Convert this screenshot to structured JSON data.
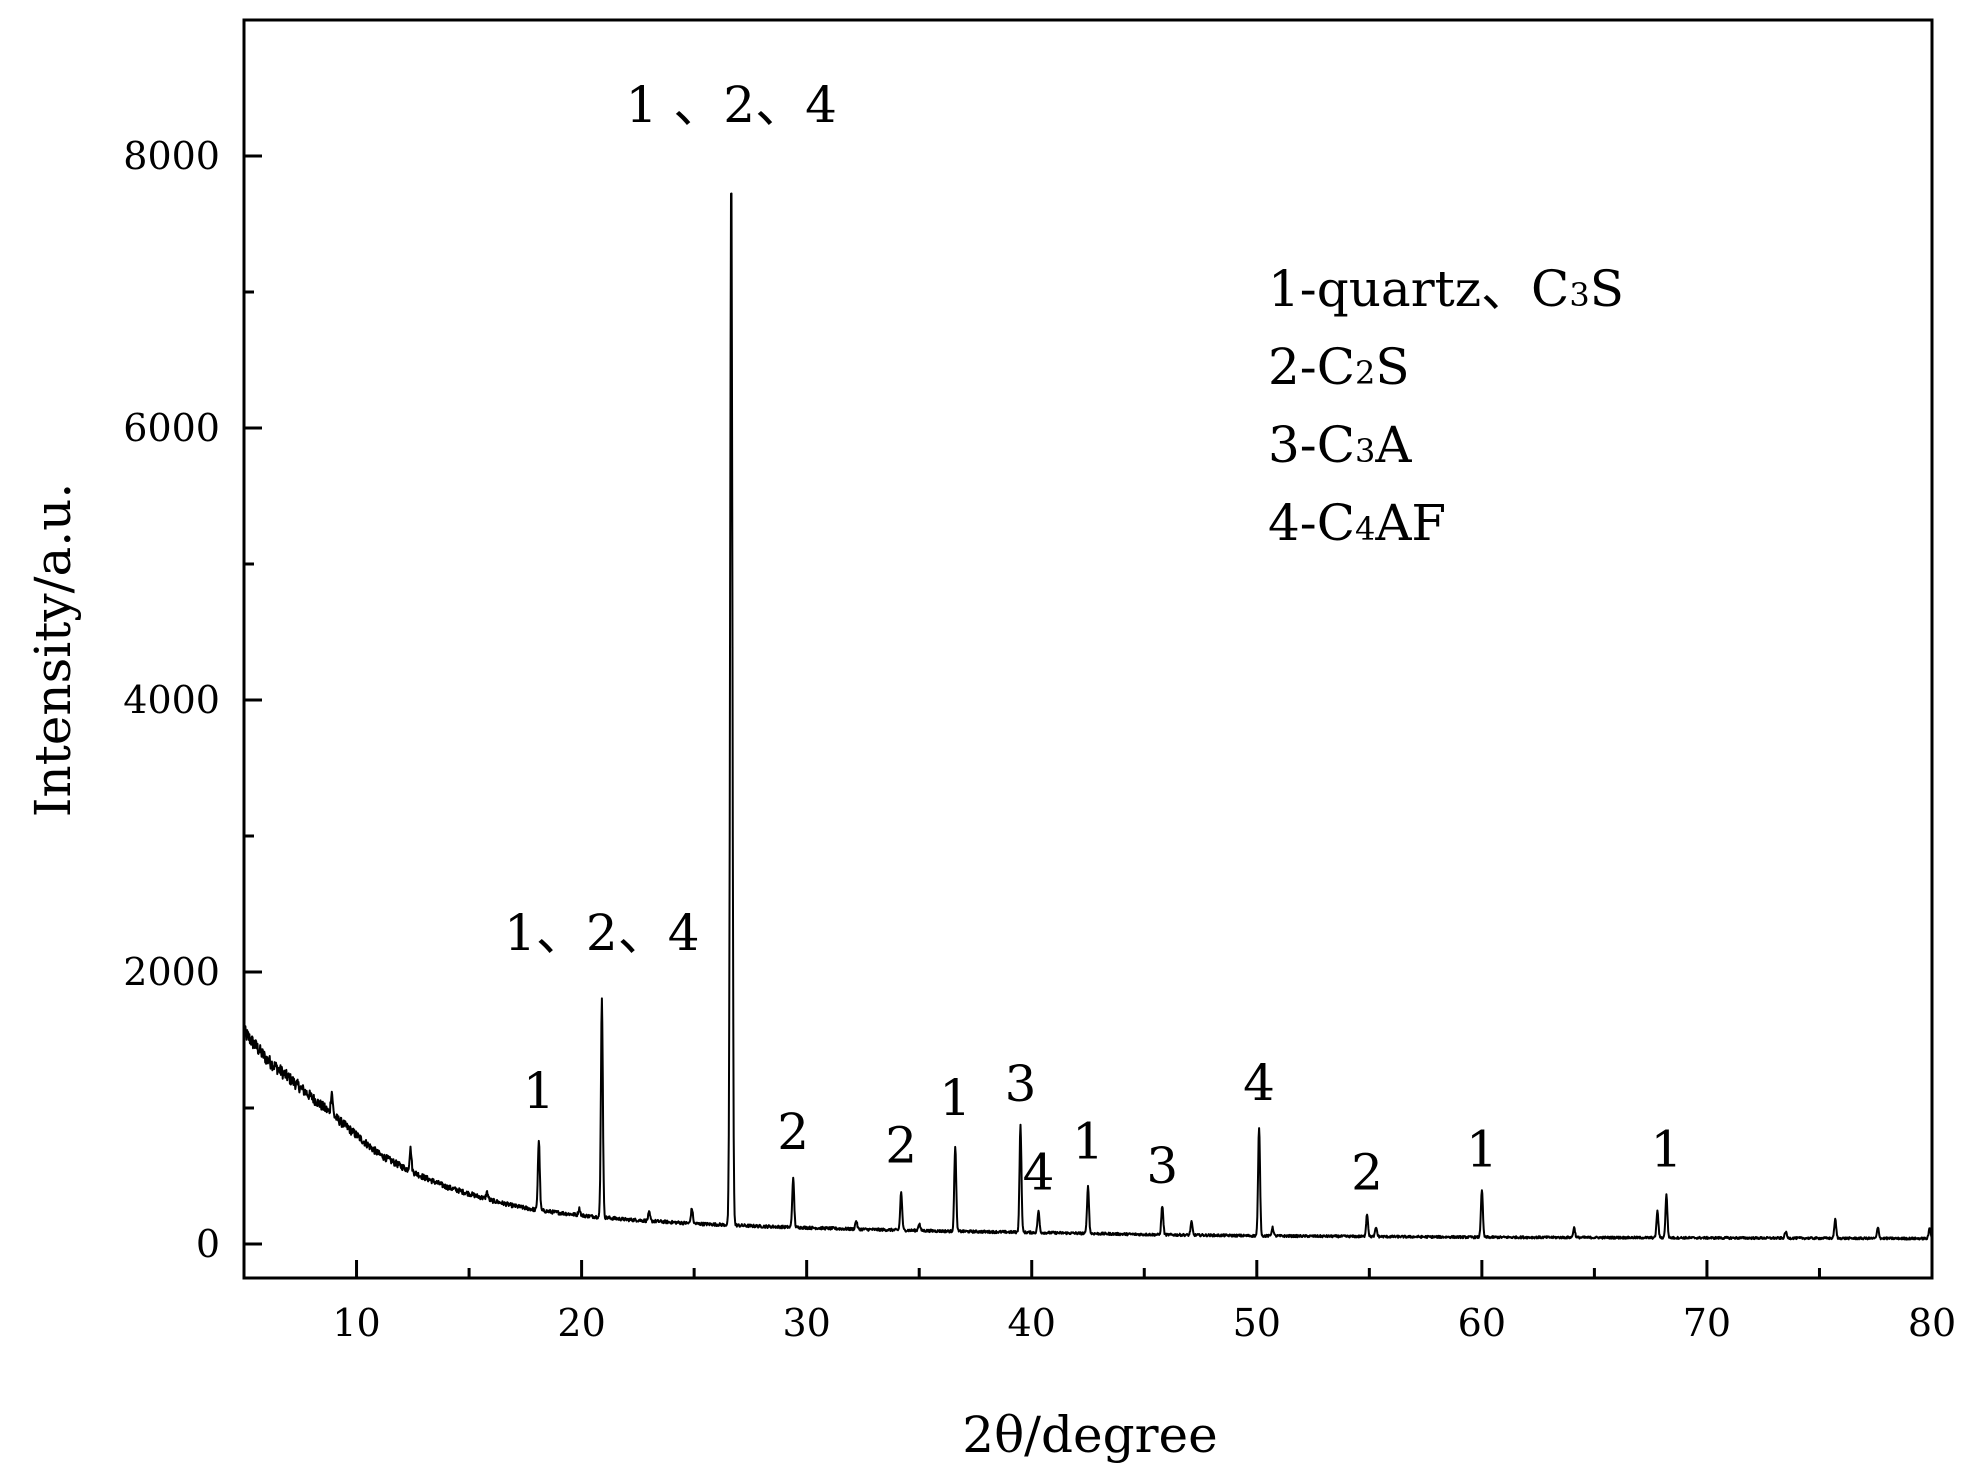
{
  "chart_data": {
    "type": "line",
    "title": "",
    "xlabel": "2θ/degree",
    "ylabel": "Intensity/a.u.",
    "xlim": [
      5,
      80
    ],
    "ylim": [
      -250,
      9000
    ],
    "xticks": [
      10,
      20,
      30,
      40,
      50,
      60,
      70,
      80
    ],
    "yticks": [
      0,
      2000,
      4000,
      6000,
      8000
    ],
    "grid": false,
    "legend": {
      "placement": "top-right",
      "entries": [
        {
          "pre": "1-quartz、C",
          "sub": "3",
          "post": "S"
        },
        {
          "pre": "2-C",
          "sub": "2",
          "post": "S"
        },
        {
          "pre": "3-C",
          "sub": "3",
          "post": "A"
        },
        {
          "pre": "4-C",
          "sub": "4",
          "post": "AF"
        }
      ]
    },
    "baseline": [
      [
        5,
        1560
      ],
      [
        6,
        1360
      ],
      [
        7,
        1220
      ],
      [
        8,
        1080
      ],
      [
        9,
        940
      ],
      [
        10,
        800
      ],
      [
        11,
        660
      ],
      [
        12,
        570
      ],
      [
        13,
        490
      ],
      [
        14,
        420
      ],
      [
        15,
        370
      ],
      [
        16,
        320
      ],
      [
        17,
        280
      ],
      [
        18,
        250
      ],
      [
        20,
        210
      ],
      [
        22,
        180
      ],
      [
        25,
        150
      ],
      [
        28,
        130
      ],
      [
        32,
        110
      ],
      [
        36,
        95
      ],
      [
        40,
        85
      ],
      [
        45,
        70
      ],
      [
        50,
        60
      ],
      [
        60,
        50
      ],
      [
        70,
        45
      ],
      [
        80,
        40
      ]
    ],
    "peaks": [
      {
        "x": 8.9,
        "height": 1120
      },
      {
        "x": 12.4,
        "height": 700
      },
      {
        "x": 15.8,
        "height": 380
      },
      {
        "x": 18.1,
        "height": 760
      },
      {
        "x": 19.9,
        "height": 260
      },
      {
        "x": 20.9,
        "height": 1800
      },
      {
        "x": 23.0,
        "height": 230
      },
      {
        "x": 24.9,
        "height": 260
      },
      {
        "x": 26.65,
        "height": 7880
      },
      {
        "x": 29.4,
        "height": 480
      },
      {
        "x": 32.2,
        "height": 170
      },
      {
        "x": 34.2,
        "height": 380
      },
      {
        "x": 35.0,
        "height": 150
      },
      {
        "x": 36.6,
        "height": 720
      },
      {
        "x": 39.5,
        "height": 870
      },
      {
        "x": 40.3,
        "height": 240
      },
      {
        "x": 42.5,
        "height": 420
      },
      {
        "x": 45.8,
        "height": 280
      },
      {
        "x": 47.1,
        "height": 160
      },
      {
        "x": 50.1,
        "height": 860
      },
      {
        "x": 50.7,
        "height": 120
      },
      {
        "x": 54.9,
        "height": 220
      },
      {
        "x": 55.3,
        "height": 120
      },
      {
        "x": 60.0,
        "height": 400
      },
      {
        "x": 64.1,
        "height": 120
      },
      {
        "x": 67.8,
        "height": 240
      },
      {
        "x": 68.2,
        "height": 360
      },
      {
        "x": 73.5,
        "height": 90
      },
      {
        "x": 75.7,
        "height": 180
      },
      {
        "x": 77.6,
        "height": 120
      },
      {
        "x": 79.9,
        "height": 120
      }
    ],
    "annotations": [
      {
        "text": "1 、2、4",
        "x": 26.65,
        "y": 8250
      },
      {
        "text": "1、2、4",
        "x": 20.9,
        "y": 2160
      },
      {
        "text": "1",
        "x": 18.1,
        "y": 1000
      },
      {
        "text": "2",
        "x": 29.4,
        "y": 700
      },
      {
        "text": "2",
        "x": 34.2,
        "y": 600
      },
      {
        "text": "1",
        "x": 36.6,
        "y": 950
      },
      {
        "text": "3",
        "x": 39.5,
        "y": 1050
      },
      {
        "text": "4",
        "x": 40.3,
        "y": 400
      },
      {
        "text": "1",
        "x": 42.5,
        "y": 630
      },
      {
        "text": "3",
        "x": 45.8,
        "y": 450
      },
      {
        "text": "4",
        "x": 50.1,
        "y": 1060
      },
      {
        "text": "2",
        "x": 54.9,
        "y": 400
      },
      {
        "text": "1",
        "x": 60.0,
        "y": 570
      },
      {
        "text": "1",
        "x": 68.2,
        "y": 570
      }
    ]
  }
}
